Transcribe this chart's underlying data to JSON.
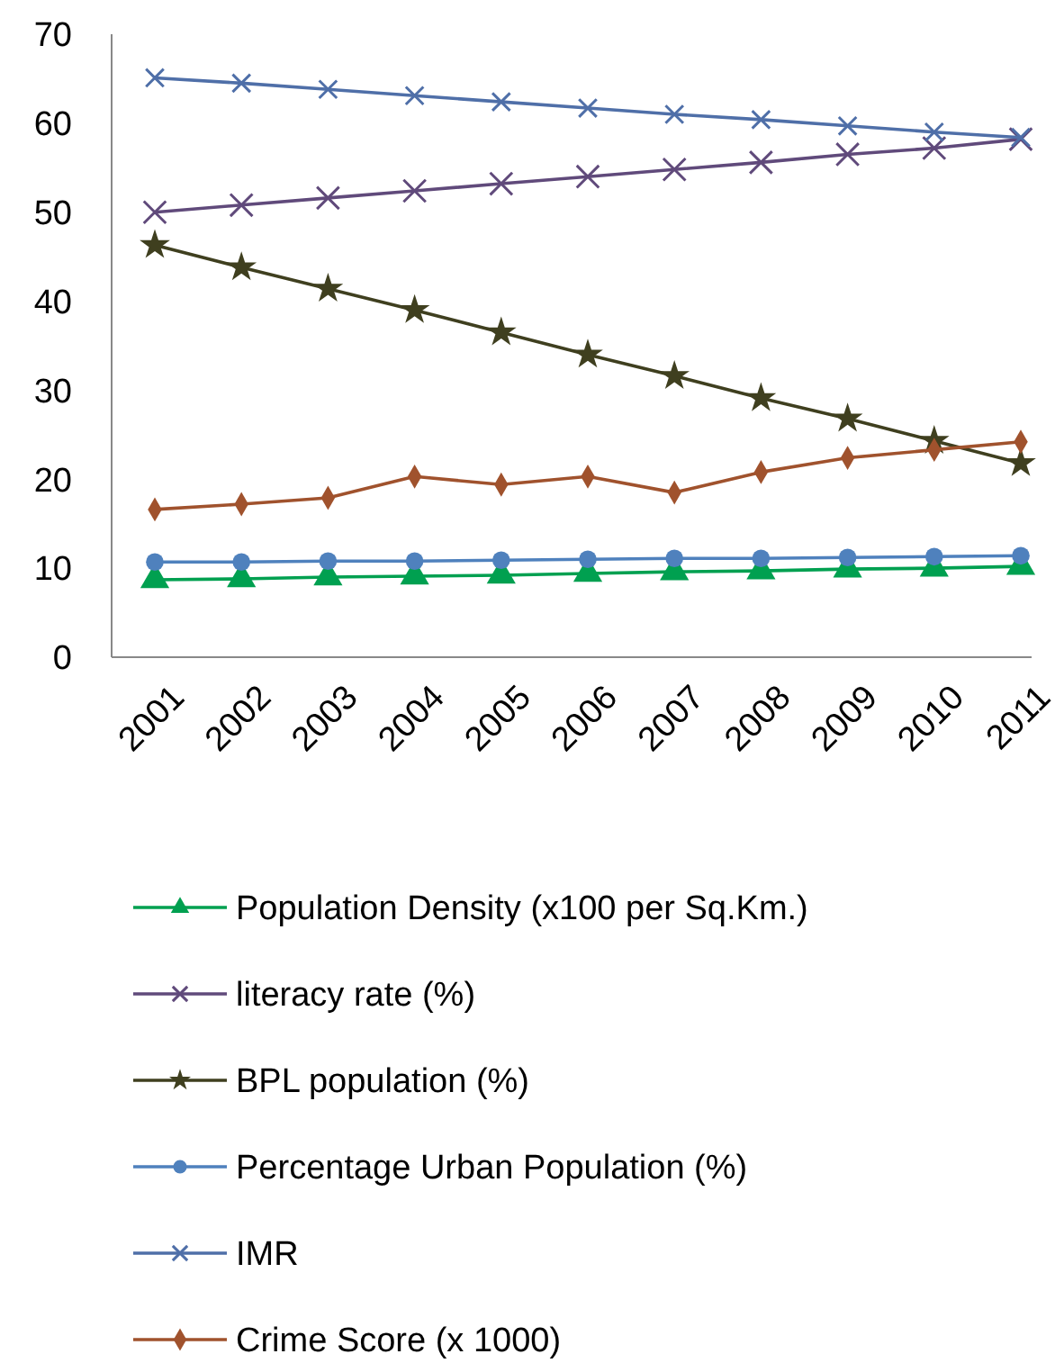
{
  "chart_data": {
    "type": "line",
    "categories": [
      "2001",
      "2002",
      "2003",
      "2004",
      "2005",
      "2006",
      "2007",
      "2008",
      "2009",
      "2010",
      "2011"
    ],
    "ylim": [
      0,
      70
    ],
    "yticks": [
      0,
      10,
      20,
      30,
      40,
      50,
      60,
      70
    ],
    "grid": false,
    "legend": "bottom",
    "series": [
      {
        "name": "Population Density (x100 per Sq.Km.)",
        "color": "#00a050",
        "marker": "triangle",
        "values": [
          8.7,
          8.8,
          9.0,
          9.1,
          9.2,
          9.4,
          9.6,
          9.7,
          9.9,
          10.0,
          10.2
        ]
      },
      {
        "name": "literacy rate (%)",
        "color": "#604a7b",
        "marker": "cross",
        "values": [
          50.0,
          50.8,
          51.6,
          52.4,
          53.2,
          54.0,
          54.8,
          55.6,
          56.5,
          57.2,
          58.2
        ]
      },
      {
        "name": "BPL population (%)",
        "color": "#3f3f1f",
        "marker": "star",
        "values": [
          46.3,
          43.8,
          41.4,
          39.0,
          36.5,
          34.0,
          31.6,
          29.1,
          26.8,
          24.3,
          21.8
        ]
      },
      {
        "name": "Percentage Urban Population (%)",
        "color": "#4f81bd",
        "marker": "circle",
        "values": [
          10.7,
          10.7,
          10.8,
          10.8,
          10.9,
          11.0,
          11.1,
          11.1,
          11.2,
          11.3,
          11.4
        ]
      },
      {
        "name": "IMR",
        "color": "#4f6fa8",
        "marker": "cross",
        "values": [
          65.1,
          64.5,
          63.8,
          63.1,
          62.4,
          61.7,
          61.0,
          60.4,
          59.7,
          59.0,
          58.4
        ]
      },
      {
        "name": "Crime Score (x 1000)",
        "color": "#a0522d",
        "marker": "diamond",
        "values": [
          16.6,
          17.2,
          17.9,
          20.3,
          19.4,
          20.3,
          18.5,
          20.8,
          22.4,
          23.3,
          24.2
        ]
      }
    ]
  }
}
